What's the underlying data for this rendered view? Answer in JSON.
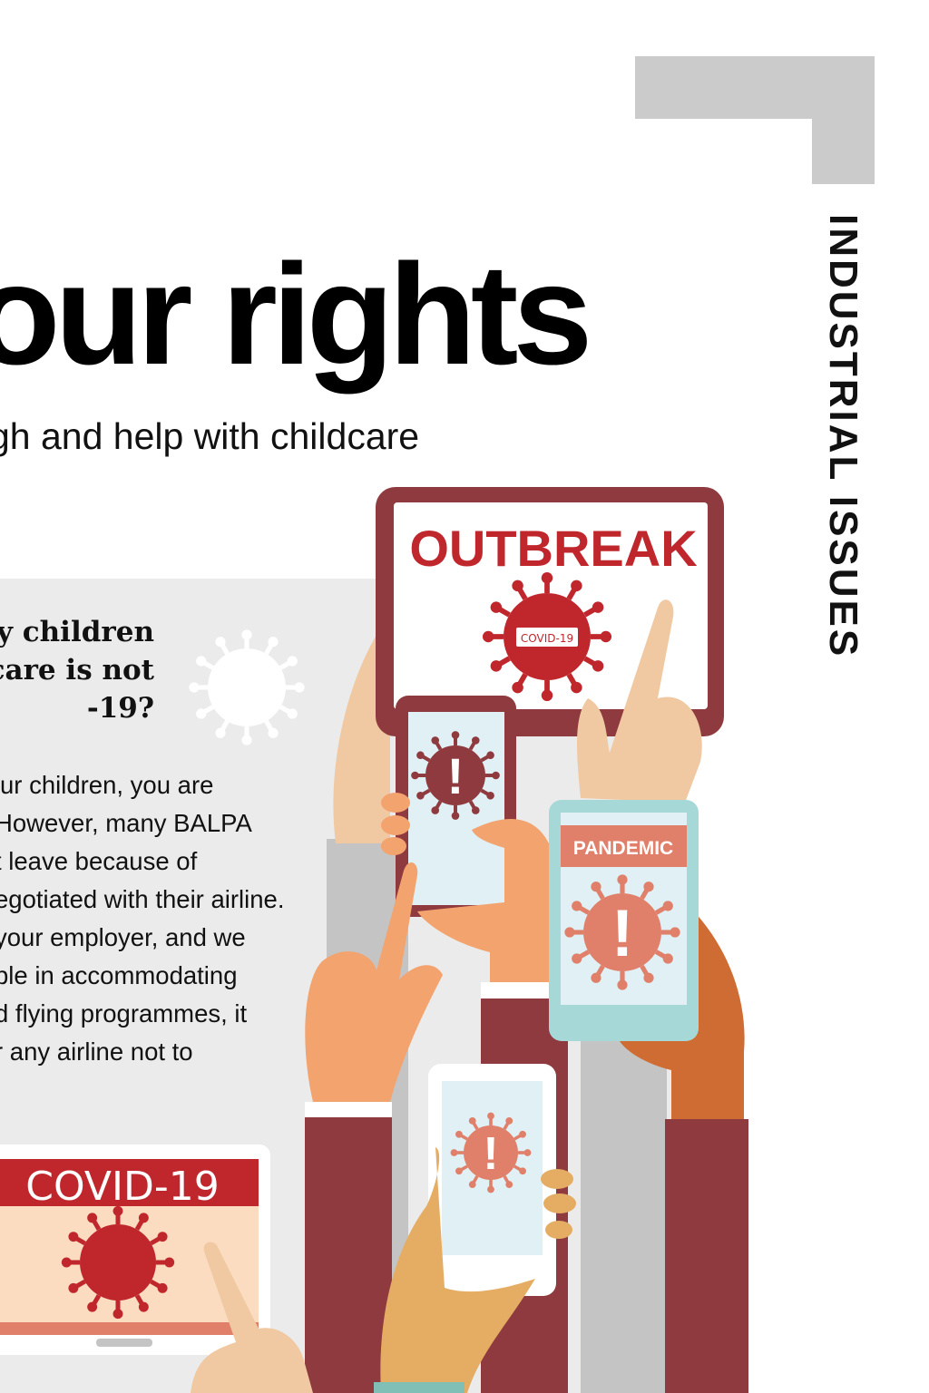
{
  "section_label": "INDUSTRIAL ISSUES",
  "title": "our rights",
  "subtitle": "gh and help with childcare",
  "question": [
    "y children",
    "lcare is not",
    "-19?"
  ],
  "body_lines": [
    "ur children, you are",
    "However, many BALPA",
    "t leave because of",
    "egotiated with their airline.",
    " your employer, and we",
    "ble in accommodating",
    "d flying programmes, it",
    "r any airline not to"
  ],
  "illustration": {
    "tablet_heading": "OUTBREAK",
    "tablet_badge": "COVID-19",
    "phone_heading": "PANDEMIC",
    "laptop_heading": "COVID-19",
    "alert_glyph": "!",
    "colors": {
      "maroon": "#8e3a3e",
      "red": "#c0272d",
      "coral": "#e0806a",
      "teal": "#a6d8d8",
      "screen": "#e0f0f4",
      "skin_light": "#f0c9a3",
      "skin_orange": "#f3a36e",
      "skin_dark": "#cf6c33",
      "skin_gold": "#e4ad63",
      "sleeve_grey": "#c4c4c4",
      "laptop_screen": "#fbdcc0"
    }
  }
}
